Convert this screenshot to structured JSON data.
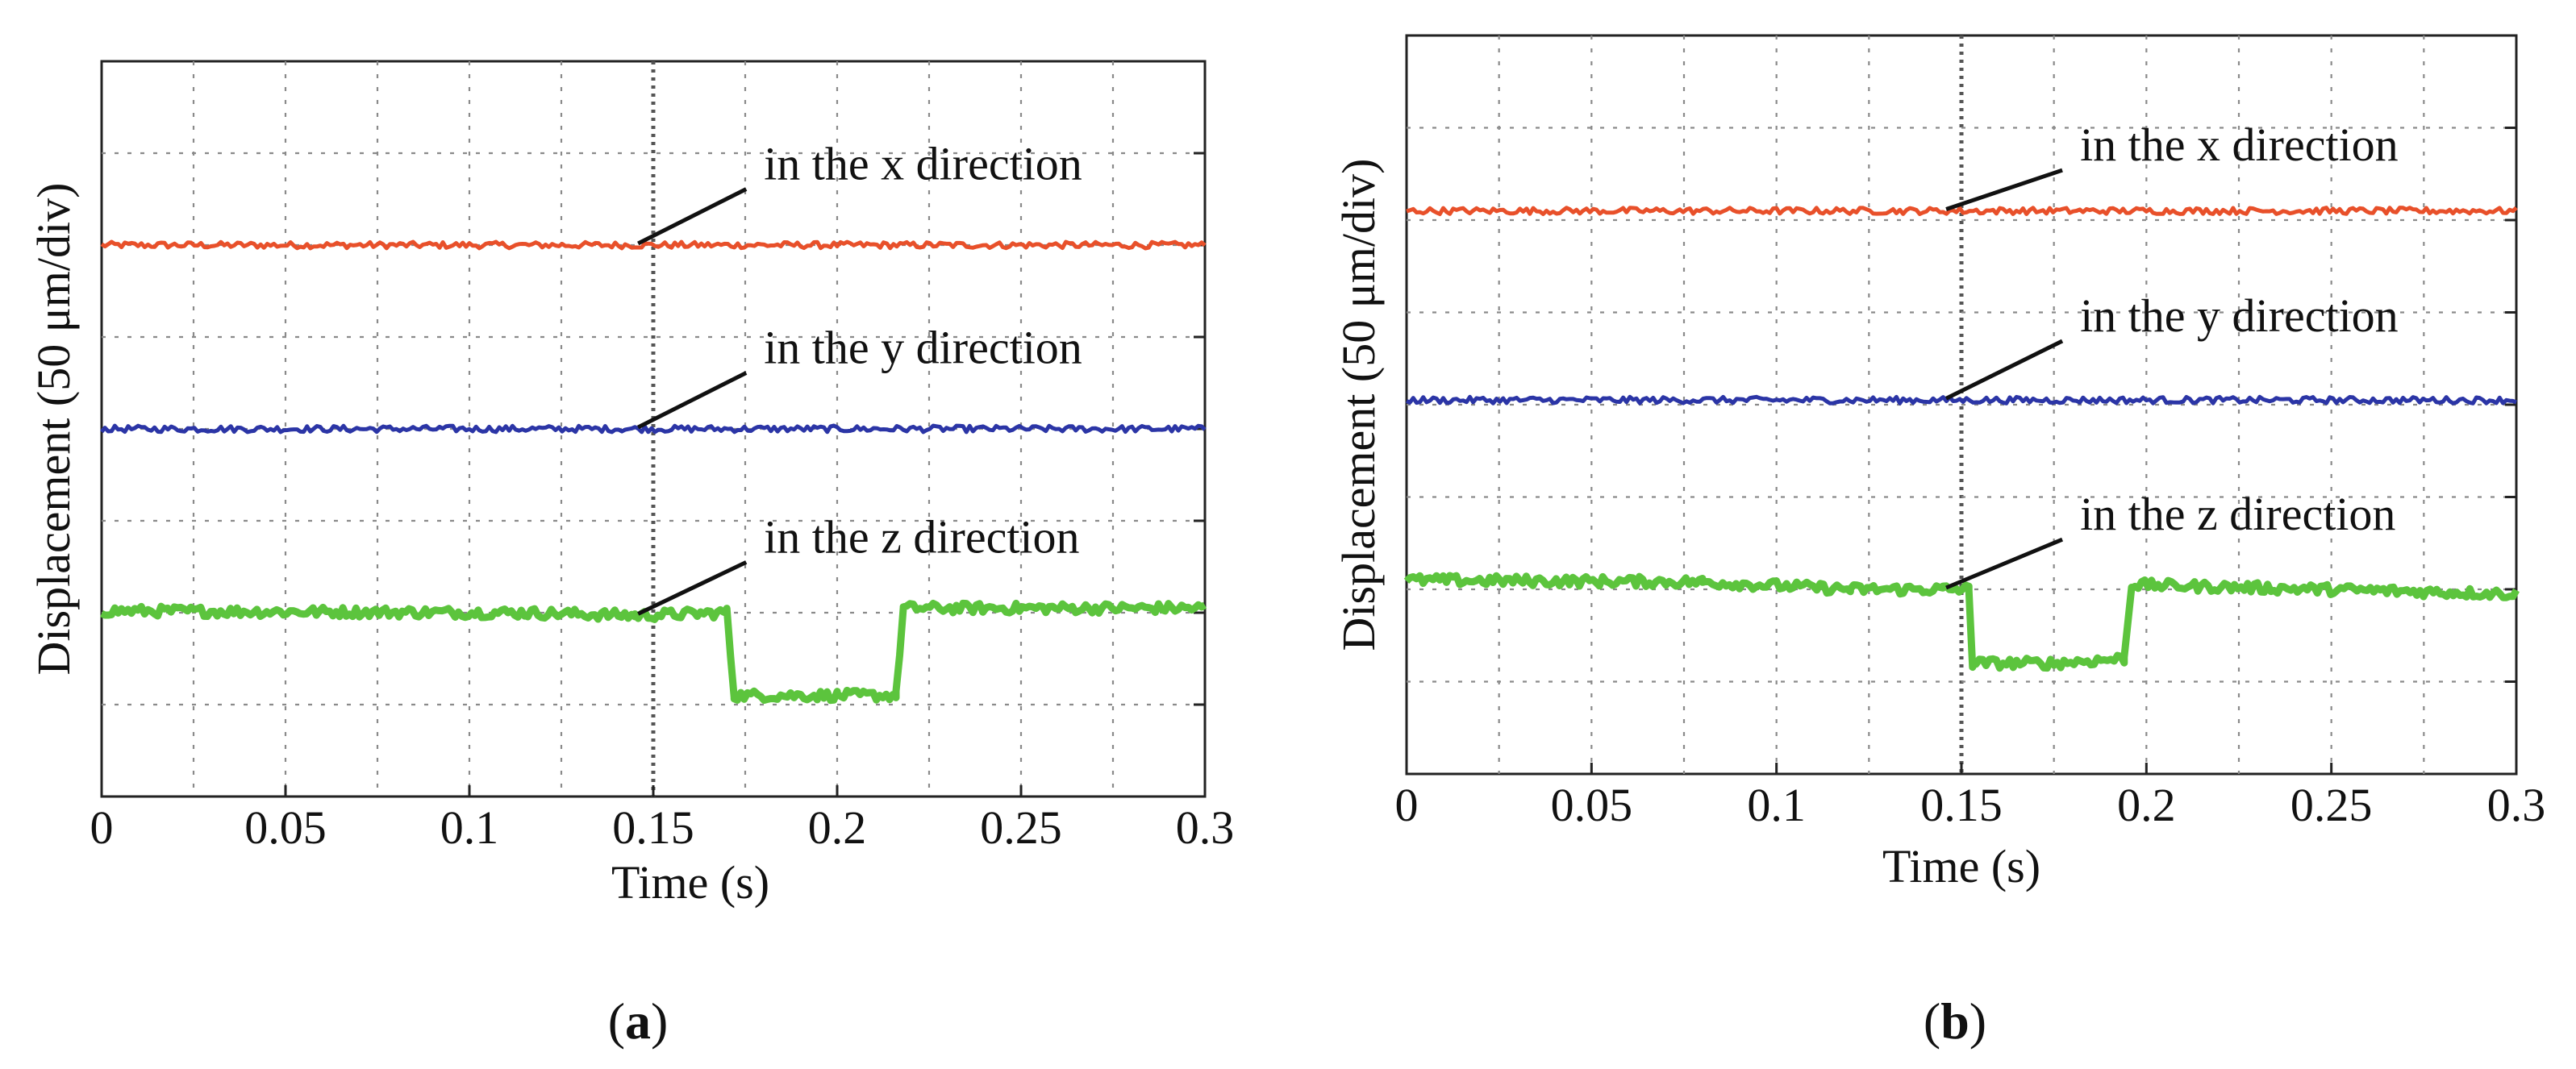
{
  "chart_data": [
    {
      "type": "line",
      "panel": "a",
      "xlabel": "Time (s)",
      "ylabel": "Displacement  (50 μm/div)",
      "xlim": [
        0,
        0.3
      ],
      "xticks": [
        "0",
        "0.05",
        "0.1",
        "0.15",
        "0.2",
        "0.25",
        "0.3"
      ],
      "ylim": [
        0,
        8
      ],
      "grid": true,
      "series": [
        {
          "name": "in the x direction",
          "color": "#e8502a",
          "x": [
            0,
            0.3
          ],
          "y": [
            6,
            6
          ],
          "label_x": 0.145
        },
        {
          "name": "in the y direction",
          "color": "#2b35a6",
          "x": [
            0,
            0.3
          ],
          "y": [
            4,
            4
          ],
          "label_x": 0.145
        },
        {
          "name": "in the z direction",
          "color": "#5cc43d",
          "x": [
            0,
            0.115,
            0.145,
            0.17,
            0.172,
            0.2,
            0.216,
            0.218,
            0.3
          ],
          "y": [
            2.02,
            2.0,
            1.97,
            2.0,
            1.1,
            1.1,
            1.1,
            2.05,
            2.05
          ],
          "label_x": 0.145
        }
      ]
    },
    {
      "type": "line",
      "panel": "b",
      "xlabel": "Time (s)",
      "ylabel": "Displacement  (50 μm/div)",
      "xlim": [
        0,
        0.3
      ],
      "xticks": [
        "0",
        "0.05",
        "0.1",
        "0.15",
        "0.2",
        "0.25",
        "0.3"
      ],
      "ylim": [
        0,
        8
      ],
      "grid": true,
      "series": [
        {
          "name": "in the x direction",
          "color": "#e8502a",
          "x": [
            0,
            0.3
          ],
          "y": [
            6.1,
            6.1
          ],
          "label_x": 0.145
        },
        {
          "name": "in the y direction",
          "color": "#2b35a6",
          "x": [
            0,
            0.3
          ],
          "y": [
            4.05,
            4.05
          ],
          "label_x": 0.145
        },
        {
          "name": "in the z direction",
          "color": "#5cc43d",
          "x": [
            0,
            0.08,
            0.12,
            0.145,
            0.152,
            0.153,
            0.175,
            0.194,
            0.196,
            0.3
          ],
          "y": [
            2.1,
            2.08,
            2.0,
            2.0,
            2.0,
            1.2,
            1.2,
            1.25,
            2.05,
            1.95
          ],
          "label_x": 0.145
        }
      ]
    }
  ]
}
